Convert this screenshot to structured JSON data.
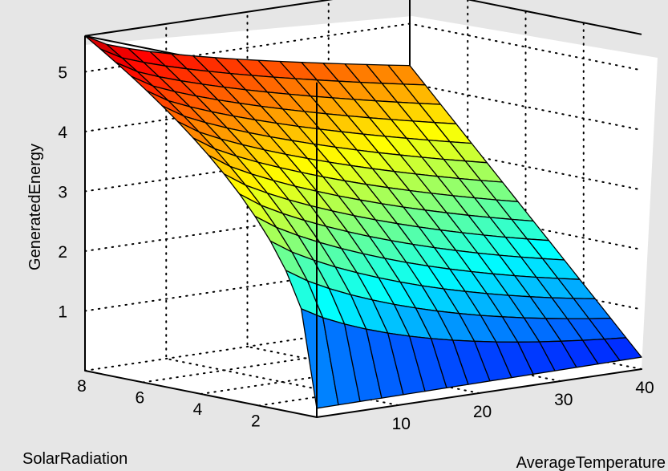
{
  "chart_data": {
    "type": "surface",
    "title": "",
    "xlabel": "AverageTemperature",
    "ylabel": "SolarRadiation",
    "zlabel": "GeneratedEnergy",
    "xlim": [
      0,
      40
    ],
    "ylim": [
      0,
      8
    ],
    "zlim": [
      0,
      5.6
    ],
    "x_ticks": [
      "10",
      "20",
      "30",
      "40"
    ],
    "y_ticks": [
      "2",
      "4",
      "6",
      "8"
    ],
    "z_ticks": [
      "1",
      "2",
      "3",
      "4",
      "5"
    ],
    "grid": true,
    "colormap": "jet (blue to yellow)",
    "grid_resolution": [
      15,
      15
    ],
    "corner_values": {
      "x0_y8": 5.6,
      "x40_y8": 4.3,
      "x0_y0": 0.15,
      "x40_y0": 0.2
    },
    "colors": {
      "background": "#e6e6e6",
      "axes_face": "#ffffff",
      "edge": "#000000"
    }
  }
}
